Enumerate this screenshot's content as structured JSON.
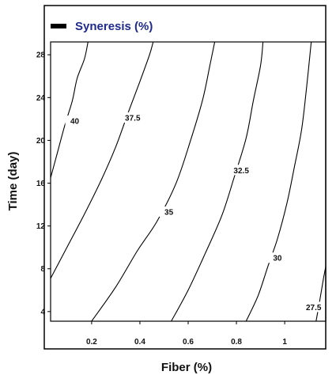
{
  "chart_data": {
    "type": "contour",
    "legend": {
      "label": "Syneresis (%)",
      "position": "top-left"
    },
    "xlabel": "Fiber (%)",
    "ylabel": "Time (day)",
    "xlim": [
      0.03,
      1.17
    ],
    "ylim": [
      3.1,
      29.2
    ],
    "x_ticks": [
      {
        "value": 0.2,
        "label": "0.2"
      },
      {
        "value": 0.4,
        "label": "0.4"
      },
      {
        "value": 0.6,
        "label": "0.6"
      },
      {
        "value": 0.8,
        "label": "0.8"
      },
      {
        "value": 1.0,
        "label": "1"
      }
    ],
    "y_ticks": [
      {
        "value": 4,
        "label": "4"
      },
      {
        "value": 8,
        "label": "8"
      },
      {
        "value": 12,
        "label": "12"
      },
      {
        "value": 16,
        "label": "16"
      },
      {
        "value": 20,
        "label": "20"
      },
      {
        "value": 24,
        "label": "24"
      },
      {
        "value": 28,
        "label": "28"
      }
    ],
    "contours": [
      {
        "level": 40,
        "label": "40",
        "label_at": [
          0.13,
          21.8
        ],
        "points": [
          [
            0.03,
            16.5
          ],
          [
            0.06,
            19.0
          ],
          [
            0.09,
            21.5
          ],
          [
            0.12,
            23.7
          ],
          [
            0.14,
            25.8
          ],
          [
            0.17,
            27.6
          ],
          [
            0.185,
            29.2
          ]
        ]
      },
      {
        "level": 37.5,
        "label": "37.5",
        "label_at": [
          0.37,
          22.1
        ],
        "points": [
          [
            0.03,
            7.1
          ],
          [
            0.1,
            10.1
          ],
          [
            0.17,
            13.1
          ],
          [
            0.24,
            16.3
          ],
          [
            0.3,
            19.4
          ],
          [
            0.35,
            22.5
          ],
          [
            0.4,
            25.5
          ],
          [
            0.44,
            28.0
          ],
          [
            0.455,
            29.2
          ]
        ]
      },
      {
        "level": 35,
        "label": "35",
        "label_at": [
          0.52,
          13.3
        ],
        "points": [
          [
            0.2,
            3.1
          ],
          [
            0.3,
            6.3
          ],
          [
            0.39,
            9.7
          ],
          [
            0.47,
            12.4
          ],
          [
            0.55,
            16.0
          ],
          [
            0.61,
            20.0
          ],
          [
            0.66,
            23.8
          ],
          [
            0.69,
            27.0
          ],
          [
            0.71,
            29.2
          ]
        ]
      },
      {
        "level": 32.5,
        "label": "32.5",
        "label_at": [
          0.82,
          17.2
        ],
        "points": [
          [
            0.53,
            3.1
          ],
          [
            0.6,
            6.0
          ],
          [
            0.67,
            9.4
          ],
          [
            0.74,
            13.0
          ],
          [
            0.79,
            16.5
          ],
          [
            0.84,
            20.2
          ],
          [
            0.87,
            23.7
          ],
          [
            0.9,
            27.0
          ],
          [
            0.91,
            29.2
          ]
        ]
      },
      {
        "level": 30,
        "label": "30",
        "label_at": [
          0.97,
          9.0
        ],
        "points": [
          [
            0.84,
            3.1
          ],
          [
            0.89,
            5.5
          ],
          [
            0.93,
            8.2
          ],
          [
            0.97,
            10.8
          ],
          [
            1.01,
            14.2
          ],
          [
            1.04,
            17.5
          ],
          [
            1.07,
            21.0
          ],
          [
            1.09,
            24.8
          ],
          [
            1.11,
            29.2
          ]
        ]
      },
      {
        "level": 27.5,
        "label": "27.5",
        "label_at": [
          1.12,
          4.4
        ],
        "points": [
          [
            1.13,
            3.1
          ],
          [
            1.145,
            5.0
          ],
          [
            1.16,
            7.0
          ],
          [
            1.17,
            8.2
          ]
        ]
      }
    ]
  }
}
